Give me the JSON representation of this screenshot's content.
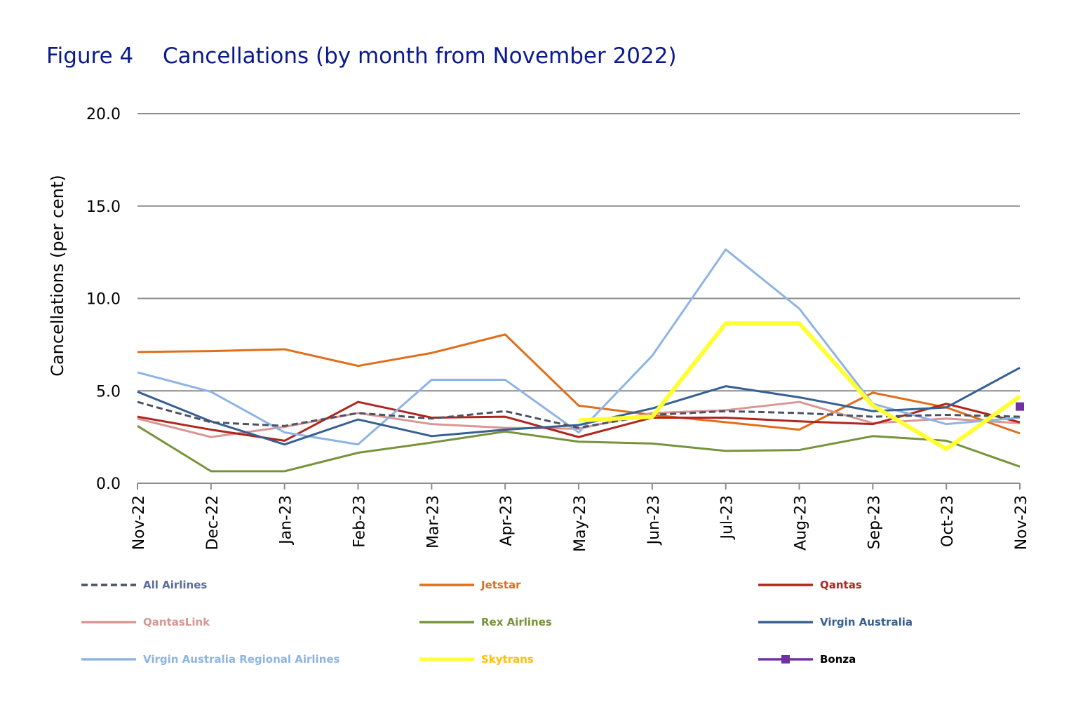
{
  "figure": {
    "number": "Figure 4",
    "caption": "Cancellations (by month from November 2022)"
  },
  "chart_data": {
    "type": "line",
    "title": "Cancellations (by month from November 2022)",
    "xlabel": "",
    "ylabel": "Cancellations (per cent)",
    "ylim": [
      0,
      20
    ],
    "yticks": [
      "0.0",
      "5.0",
      "10.0",
      "15.0",
      "20.0"
    ],
    "ytick_values": [
      0,
      5,
      10,
      15,
      20
    ],
    "grid": true,
    "legend_position": "bottom",
    "categories": [
      "Nov-22",
      "Dec-22",
      "Jan-23",
      "Feb-23",
      "Mar-23",
      "Apr-23",
      "May-23",
      "Jun-23",
      "Jul-23",
      "Aug-23",
      "Sep-23",
      "Oct-23",
      "Nov-23"
    ],
    "series": [
      {
        "name": "All Airlines",
        "color": "#4a5364",
        "label_color": "#5a6c9a",
        "dash": true,
        "width": 3,
        "values": [
          4.4,
          3.3,
          3.1,
          3.8,
          3.5,
          3.9,
          3.0,
          3.7,
          3.9,
          3.8,
          3.6,
          3.7,
          3.6
        ]
      },
      {
        "name": "Jetstar",
        "color": "#e06e1a",
        "label_color": "#e06e1a",
        "width": 3,
        "values": [
          7.1,
          7.15,
          7.25,
          6.35,
          7.05,
          8.05,
          4.2,
          3.7,
          3.3,
          2.9,
          4.9,
          4.1,
          2.7
        ]
      },
      {
        "name": "Qantas",
        "color": "#b0261e",
        "label_color": "#b0261e",
        "width": 3,
        "values": [
          3.6,
          2.9,
          2.3,
          4.4,
          3.55,
          3.6,
          2.5,
          3.55,
          3.55,
          3.35,
          3.2,
          4.3,
          3.3
        ]
      },
      {
        "name": "QantasLink",
        "color": "#d99694",
        "label_color": "#d99694",
        "width": 3,
        "values": [
          3.5,
          2.5,
          3.05,
          3.8,
          3.2,
          3.0,
          2.95,
          3.8,
          3.95,
          4.4,
          3.25,
          3.5,
          3.25
        ]
      },
      {
        "name": "Rex Airlines",
        "color": "#77933c",
        "label_color": "#77933c",
        "width": 3,
        "values": [
          3.1,
          0.65,
          0.65,
          1.65,
          2.2,
          2.8,
          2.25,
          2.15,
          1.75,
          1.8,
          2.55,
          2.3,
          0.9
        ]
      },
      {
        "name": "Virgin Australia",
        "color": "#376092",
        "label_color": "#376092",
        "width": 3,
        "values": [
          4.95,
          3.35,
          2.1,
          3.45,
          2.55,
          2.9,
          3.15,
          4.05,
          5.25,
          4.65,
          3.9,
          4.1,
          6.25
        ]
      },
      {
        "name": "Virgin Australia Regional Airlines",
        "color": "#8eb4e3",
        "label_color": "#8eb4e3",
        "width": 3,
        "values": [
          6.0,
          4.95,
          2.75,
          2.1,
          5.6,
          5.6,
          2.75,
          6.9,
          12.65,
          9.45,
          4.3,
          3.2,
          3.55
        ]
      },
      {
        "name": "Skytrans",
        "color": "#ffff33",
        "label_color": "#ffc000",
        "width": 6,
        "values": [
          null,
          null,
          null,
          null,
          null,
          null,
          3.4,
          3.6,
          8.65,
          8.65,
          4.2,
          1.85,
          4.7
        ]
      },
      {
        "name": "Bonza",
        "color": "#7030a0",
        "label_color": "#000000",
        "width": 3,
        "marker": "square",
        "values": [
          null,
          null,
          null,
          null,
          null,
          null,
          null,
          null,
          null,
          null,
          null,
          null,
          4.15
        ]
      }
    ]
  }
}
